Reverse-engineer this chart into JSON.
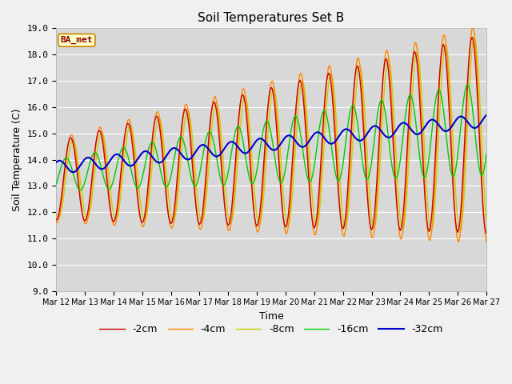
{
  "title": "Soil Temperatures Set B",
  "xlabel": "Time",
  "ylabel": "Soil Temperature (C)",
  "ylim": [
    9.0,
    19.0
  ],
  "yticks": [
    9.0,
    10.0,
    11.0,
    12.0,
    13.0,
    14.0,
    15.0,
    16.0,
    17.0,
    18.0,
    19.0
  ],
  "xtick_labels": [
    "Mar 12",
    "Mar 13",
    "Mar 14",
    "Mar 15",
    "Mar 16",
    "Mar 17",
    "Mar 18",
    "Mar 19",
    "Mar 20",
    "Mar 21",
    "Mar 22",
    "Mar 23",
    "Mar 24",
    "Mar 25",
    "Mar 26",
    "Mar 27"
  ],
  "legend_labels": [
    "-2cm",
    "-4cm",
    "-8cm",
    "-16cm",
    "-32cm"
  ],
  "legend_colors": [
    "#cc0000",
    "#ff8800",
    "#cccc00",
    "#00cc00",
    "#0000cc"
  ],
  "fig_bg_color": "#f0f0f0",
  "plot_bg_color": "#d8d8d8",
  "grid_color": "#ffffff",
  "annotation_text": "BA_met",
  "annotation_fg": "#8b0000",
  "annotation_bg": "#ffffcc",
  "annotation_border": "#cc8800",
  "n_days": 15,
  "pts_per_day": 24
}
